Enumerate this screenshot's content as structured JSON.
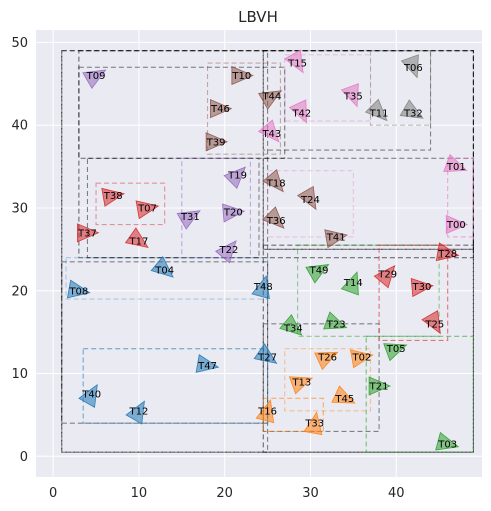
{
  "chart_data": {
    "type": "scatter",
    "title": "LBVH",
    "xlim": [
      -2,
      50
    ],
    "ylim": [
      -2.5,
      51.5
    ],
    "xticks": [
      0,
      10,
      20,
      30,
      40
    ],
    "yticks": [
      0,
      10,
      20,
      30,
      40,
      50
    ],
    "grid": true,
    "colors": {
      "background": "#eaeaf2",
      "grid": "#ffffff",
      "tab10": [
        "#1f77b4",
        "#ff7f0e",
        "#2ca02c",
        "#d62728",
        "#9467bd",
        "#8c564b",
        "#e377c2",
        "#7f7f7f",
        "#bcbd22",
        "#17becf"
      ]
    },
    "points": [
      {
        "label": "T00",
        "x": 47,
        "y": 28,
        "angle": 0,
        "color": "#e377c2"
      },
      {
        "label": "T01",
        "x": 47,
        "y": 35,
        "angle": -20,
        "color": "#e377c2"
      },
      {
        "label": "T02",
        "x": 36,
        "y": 12,
        "angle": 10,
        "color": "#ff7f0e"
      },
      {
        "label": "T03",
        "x": 46,
        "y": 1.5,
        "angle": -15,
        "color": "#2ca02c"
      },
      {
        "label": "T04",
        "x": 13,
        "y": 22.5,
        "angle": -40,
        "color": "#1f77b4"
      },
      {
        "label": "T05",
        "x": 40,
        "y": 13,
        "angle": 20,
        "color": "#2ca02c"
      },
      {
        "label": "T06",
        "x": 42,
        "y": 47,
        "angle": -70,
        "color": "#7f7f7f"
      },
      {
        "label": "T07",
        "x": 11,
        "y": 30,
        "angle": 10,
        "color": "#d62728"
      },
      {
        "label": "T08",
        "x": 3,
        "y": 20,
        "angle": -10,
        "color": "#1f77b4"
      },
      {
        "label": "T09",
        "x": 5,
        "y": 46,
        "angle": 30,
        "color": "#9467bd"
      },
      {
        "label": "T10",
        "x": 22,
        "y": 46,
        "angle": 0,
        "color": "#8c564b"
      },
      {
        "label": "T11",
        "x": 38,
        "y": 41.5,
        "angle": -45,
        "color": "#7f7f7f"
      },
      {
        "label": "T12",
        "x": 10,
        "y": 5.5,
        "angle": 60,
        "color": "#1f77b4"
      },
      {
        "label": "T13",
        "x": 29,
        "y": 9,
        "angle": 20,
        "color": "#ff7f0e"
      },
      {
        "label": "T14",
        "x": 35,
        "y": 21,
        "angle": 70,
        "color": "#2ca02c"
      },
      {
        "label": "T15",
        "x": 28.5,
        "y": 47.5,
        "angle": -60,
        "color": "#e377c2"
      },
      {
        "label": "T16",
        "x": 25,
        "y": 5.5,
        "angle": 75,
        "color": "#ff7f0e"
      },
      {
        "label": "T17",
        "x": 10,
        "y": 26,
        "angle": -35,
        "color": "#d62728"
      },
      {
        "label": "T18",
        "x": 26,
        "y": 33,
        "angle": -50,
        "color": "#8c564b"
      },
      {
        "label": "T19",
        "x": 21.5,
        "y": 34,
        "angle": 45,
        "color": "#9467bd"
      },
      {
        "label": "T20",
        "x": 21,
        "y": 29.5,
        "angle": 5,
        "color": "#9467bd"
      },
      {
        "label": "T21",
        "x": 38,
        "y": 8.5,
        "angle": 0,
        "color": "#2ca02c"
      },
      {
        "label": "T22",
        "x": 20.5,
        "y": 25,
        "angle": 50,
        "color": "#9467bd"
      },
      {
        "label": "T23",
        "x": 33,
        "y": 16,
        "angle": -20,
        "color": "#2ca02c"
      },
      {
        "label": "T24",
        "x": 30,
        "y": 31,
        "angle": -60,
        "color": "#8c564b"
      },
      {
        "label": "T25",
        "x": 44.5,
        "y": 16,
        "angle": -60,
        "color": "#d62728"
      },
      {
        "label": "T26",
        "x": 32,
        "y": 12,
        "angle": 25,
        "color": "#ff7f0e"
      },
      {
        "label": "T27",
        "x": 25,
        "y": 12,
        "angle": -35,
        "color": "#1f77b4"
      },
      {
        "label": "T28",
        "x": 46,
        "y": 24.5,
        "angle": -10,
        "color": "#d62728"
      },
      {
        "label": "T29",
        "x": 39,
        "y": 22,
        "angle": 50,
        "color": "#d62728"
      },
      {
        "label": "T30",
        "x": 43,
        "y": 20.5,
        "angle": 5,
        "color": "#d62728"
      },
      {
        "label": "T31",
        "x": 16,
        "y": 29,
        "angle": 30,
        "color": "#9467bd"
      },
      {
        "label": "T32",
        "x": 42,
        "y": 41.5,
        "angle": -30,
        "color": "#7f7f7f"
      },
      {
        "label": "T33",
        "x": 30.5,
        "y": 4,
        "angle": 80,
        "color": "#ff7f0e"
      },
      {
        "label": "T34",
        "x": 28,
        "y": 15.5,
        "angle": -40,
        "color": "#2ca02c"
      },
      {
        "label": "T35",
        "x": 35,
        "y": 43.5,
        "angle": -70,
        "color": "#e377c2"
      },
      {
        "label": "T36",
        "x": 26,
        "y": 28.5,
        "angle": -45,
        "color": "#8c564b"
      },
      {
        "label": "T37",
        "x": 4,
        "y": 27,
        "angle": 0,
        "color": "#d62728"
      },
      {
        "label": "T38",
        "x": 7,
        "y": 31.5,
        "angle": 10,
        "color": "#d62728"
      },
      {
        "label": "T39",
        "x": 19,
        "y": 38,
        "angle": 0,
        "color": "#8c564b"
      },
      {
        "label": "T40",
        "x": 4.5,
        "y": 7.5,
        "angle": 60,
        "color": "#1f77b4"
      },
      {
        "label": "T41",
        "x": 33,
        "y": 26.5,
        "angle": 10,
        "color": "#8c564b"
      },
      {
        "label": "T42",
        "x": 29,
        "y": 41.5,
        "angle": -65,
        "color": "#e377c2"
      },
      {
        "label": "T43",
        "x": 25.5,
        "y": 39,
        "angle": -50,
        "color": "#e377c2"
      },
      {
        "label": "T44",
        "x": 25.5,
        "y": 43.5,
        "angle": 30,
        "color": "#8c564b"
      },
      {
        "label": "T45",
        "x": 34,
        "y": 7,
        "angle": -25,
        "color": "#ff7f0e"
      },
      {
        "label": "T46",
        "x": 19.5,
        "y": 42,
        "angle": 0,
        "color": "#8c564b"
      },
      {
        "label": "T47",
        "x": 18,
        "y": 11,
        "angle": -10,
        "color": "#1f77b4"
      },
      {
        "label": "T48",
        "x": 24.5,
        "y": 20.5,
        "angle": 75,
        "color": "#1f77b4"
      },
      {
        "label": "T49",
        "x": 31,
        "y": 22.5,
        "angle": 30,
        "color": "#2ca02c"
      }
    ],
    "boxes": [
      {
        "x0": 1,
        "y0": 0.5,
        "x1": 49,
        "y1": 49,
        "color": "#000000",
        "opacity": 0.55
      },
      {
        "x0": 1,
        "y0": 0.5,
        "x1": 25,
        "y1": 49,
        "color": "#000000",
        "opacity": 0.45
      },
      {
        "x0": 24.5,
        "y0": 0.5,
        "x1": 49,
        "y1": 25.5,
        "color": "#000000",
        "opacity": 0.55
      },
      {
        "x0": 3,
        "y0": 24,
        "x1": 49,
        "y1": 49,
        "color": "#000000",
        "opacity": 0.55
      },
      {
        "x0": 3,
        "y0": 36,
        "x1": 27,
        "y1": 47,
        "color": "#000000",
        "opacity": 0.5
      },
      {
        "x0": 24.5,
        "y0": 25,
        "x1": 49,
        "y1": 49,
        "color": "#000000",
        "opacity": 0.5
      },
      {
        "x0": 24.5,
        "y0": 25,
        "x1": 49,
        "y1": 36,
        "color": "#000000",
        "opacity": 0.45
      },
      {
        "x0": 24.5,
        "y0": 37,
        "x1": 44,
        "y1": 49,
        "color": "#000000",
        "opacity": 0.45
      },
      {
        "x0": 4,
        "y0": 24,
        "x1": 24,
        "y1": 36,
        "color": "#000000",
        "opacity": 0.45
      },
      {
        "x0": 1,
        "y0": 4,
        "x1": 25,
        "y1": 23.5,
        "color": "#000000",
        "opacity": 0.45
      },
      {
        "x0": 24.5,
        "y0": 3,
        "x1": 38,
        "y1": 16,
        "color": "#000000",
        "opacity": 0.45
      },
      {
        "x0": 36.5,
        "y0": 0.5,
        "x1": 49,
        "y1": 14.5,
        "color": "#2ca02c",
        "opacity": 0.6
      },
      {
        "x0": 28.5,
        "y0": 14.5,
        "x1": 45,
        "y1": 25.5,
        "color": "#2ca02c",
        "opacity": 0.5
      },
      {
        "x0": 38,
        "y0": 14,
        "x1": 46,
        "y1": 25.5,
        "color": "#d62728",
        "opacity": 0.6
      },
      {
        "x0": 3.5,
        "y0": 4,
        "x1": 25,
        "y1": 13,
        "color": "#1f77b4",
        "opacity": 0.6
      },
      {
        "x0": 24.5,
        "y0": 3,
        "x1": 31.5,
        "y1": 7,
        "color": "#ff7f0e",
        "opacity": 0.6
      },
      {
        "x0": 27,
        "y0": 5.5,
        "x1": 37,
        "y1": 13,
        "color": "#ff7f0e",
        "opacity": 0.4
      },
      {
        "x0": 46,
        "y0": 26.5,
        "x1": 49,
        "y1": 36,
        "color": "#e377c2",
        "opacity": 0.6
      },
      {
        "x0": 27,
        "y0": 40.5,
        "x1": 37,
        "y1": 48.5,
        "color": "#e377c2",
        "opacity": 0.4
      },
      {
        "x0": 5,
        "y0": 28,
        "x1": 13,
        "y1": 33,
        "color": "#d62728",
        "opacity": 0.45
      },
      {
        "x0": 15,
        "y0": 24,
        "x1": 23,
        "y1": 36,
        "color": "#9467bd",
        "opacity": 0.5
      },
      {
        "x0": 1.5,
        "y0": 19,
        "x1": 25,
        "y1": 24,
        "color": "#1f77b4",
        "opacity": 0.3
      },
      {
        "x0": 18,
        "y0": 36.5,
        "x1": 26.5,
        "y1": 47.5,
        "color": "#8c564b",
        "opacity": 0.45
      },
      {
        "x0": 25,
        "y0": 26.5,
        "x1": 35,
        "y1": 34.5,
        "color": "#e377c2",
        "opacity": 0.35
      },
      {
        "x0": 37,
        "y0": 40,
        "x1": 44,
        "y1": 49,
        "color": "#7f7f7f",
        "opacity": 0.5
      }
    ]
  }
}
